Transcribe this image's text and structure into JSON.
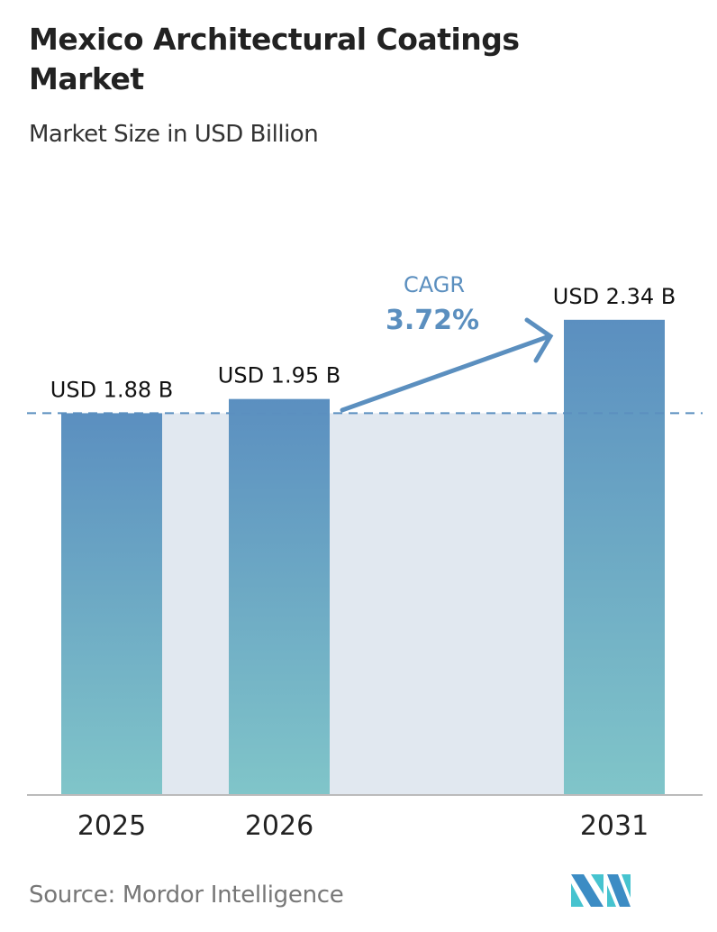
{
  "title": "Mexico Architectural Coatings Market",
  "subtitle": "Market Size in USD Billion",
  "source": "Source:  Mordor Intelligence",
  "logo": "Mordor Intelligence logo",
  "colors": {
    "bar_top": "#5b8fc0",
    "bar_bottom": "#80c5c9",
    "cagr": "#5b8fbf",
    "band": "#e1e8f0"
  },
  "cagr": {
    "label": "CAGR",
    "value": "3.72%"
  },
  "chart_data": {
    "type": "bar",
    "categories": [
      "2025",
      "2026",
      "2031"
    ],
    "values": [
      1.88,
      1.95,
      2.34
    ],
    "data_labels": [
      "USD 1.88 B",
      "USD 1.95 B",
      "USD 2.34 B"
    ],
    "ylabel": "Market Size in USD Billion",
    "grid": false,
    "reference_line": 1.88
  }
}
